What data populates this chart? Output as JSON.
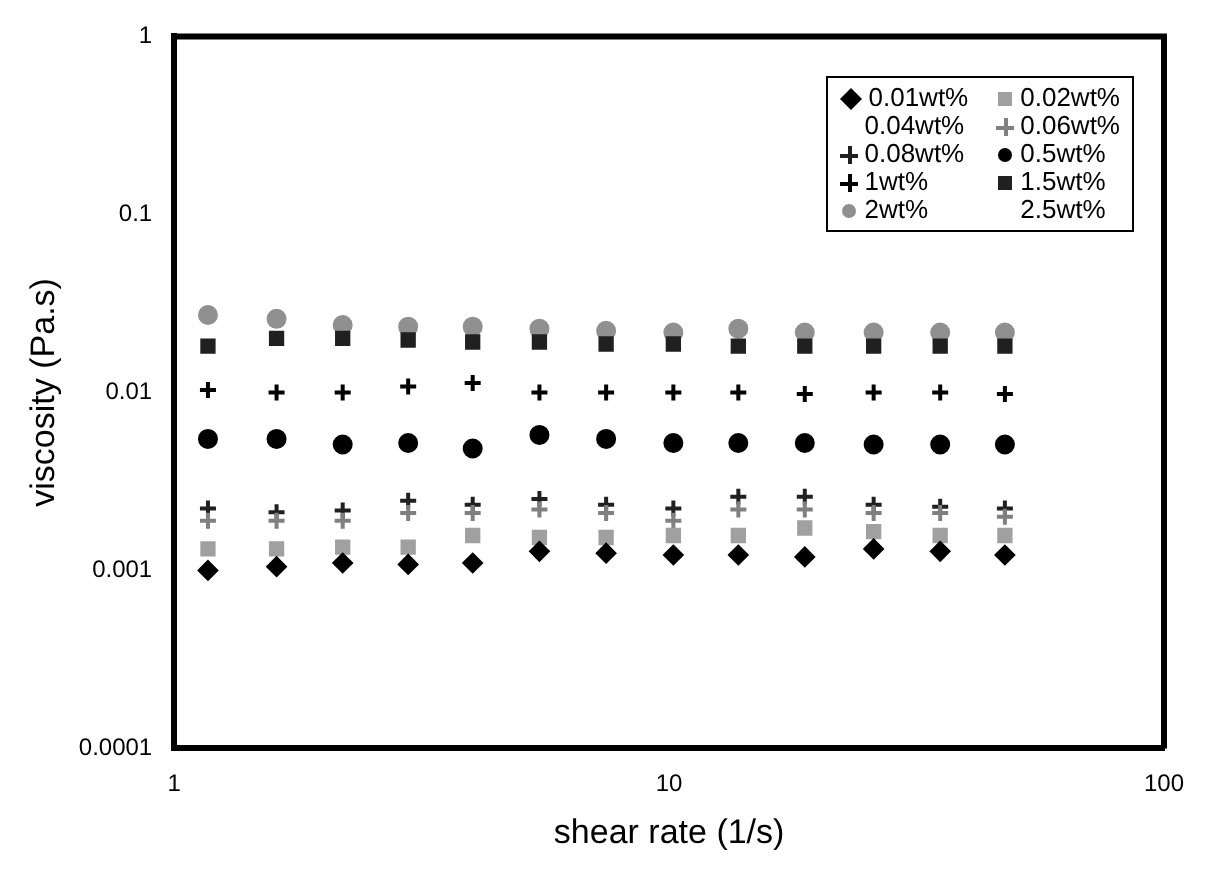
{
  "chart_data": {
    "type": "scatter",
    "xlabel": "shear rate (1/s)",
    "ylabel": "viscosity (Pa.s)",
    "log": "xy",
    "xlim": [
      1,
      100
    ],
    "ylim": [
      0.0001,
      1
    ],
    "xticks": [
      1,
      10,
      100
    ],
    "yticks": [
      0.0001,
      0.001,
      0.01,
      0.1,
      1
    ],
    "grid": false,
    "legend": "top right",
    "x": [
      1.17,
      1.61,
      2.19,
      2.97,
      4.01,
      5.47,
      7.46,
      10.2,
      13.8,
      18.8,
      25.9,
      35.3,
      47.7
    ],
    "series": [
      {
        "name": "0.01wt%",
        "color": "#000000",
        "marker": "diamond",
        "values": [
          0.001,
          0.00105,
          0.0011,
          0.00108,
          0.0011,
          0.00128,
          0.00125,
          0.00122,
          0.00122,
          0.00119,
          0.00132,
          0.00128,
          0.00122
        ]
      },
      {
        "name": "0.02wt%",
        "color": "#a0a0a0",
        "marker": "square",
        "values": [
          0.00132,
          0.00132,
          0.00135,
          0.00135,
          0.00157,
          0.00153,
          0.00153,
          0.00157,
          0.00157,
          0.00173,
          0.00165,
          0.00157,
          0.00157
        ]
      },
      {
        "name": "0.04wt%",
        "marker": "none",
        "values": [
          null,
          null,
          null,
          null,
          null,
          null,
          null,
          null,
          null,
          null,
          null,
          null,
          null
        ]
      },
      {
        "name": "0.06wt%",
        "color": "#808080",
        "marker": "cross",
        "values": [
          0.0019,
          0.0019,
          0.0019,
          0.0021,
          0.0021,
          0.0022,
          0.0021,
          0.0019,
          0.0022,
          0.0022,
          0.0021,
          0.0021,
          0.002
        ]
      },
      {
        "name": "0.08wt%",
        "color": "#202020",
        "marker": "cross",
        "values": [
          0.00223,
          0.00212,
          0.00217,
          0.00246,
          0.00234,
          0.00252,
          0.00234,
          0.00223,
          0.00259,
          0.00259,
          0.00234,
          0.00228,
          0.00223
        ]
      },
      {
        "name": "0.5wt%",
        "color": "#000000",
        "marker": "circle",
        "values": [
          0.00548,
          0.00548,
          0.0051,
          0.0052,
          0.00484,
          0.00577,
          0.00548,
          0.0052,
          0.0052,
          0.0052,
          0.0051,
          0.0051,
          0.0051
        ]
      },
      {
        "name": "1wt%",
        "color": "#000000",
        "marker": "cross",
        "values": [
          0.0103,
          0.01,
          0.01,
          0.0108,
          0.0113,
          0.01,
          0.01,
          0.01,
          0.01,
          0.0098,
          0.01,
          0.01,
          0.0098
        ]
      },
      {
        "name": "1.5wt%",
        "color": "#202020",
        "marker": "square",
        "values": [
          0.0182,
          0.0201,
          0.0201,
          0.0197,
          0.0192,
          0.0192,
          0.0187,
          0.0187,
          0.0182,
          0.0182,
          0.0182,
          0.0182,
          0.0182
        ]
      },
      {
        "name": "2wt%",
        "color": "#909090",
        "marker": "circle",
        "values": [
          0.0272,
          0.0259,
          0.0239,
          0.0234,
          0.0234,
          0.0228,
          0.0222,
          0.0217,
          0.0228,
          0.0217,
          0.0217,
          0.0217,
          0.0217
        ]
      },
      {
        "name": "2.5wt%",
        "marker": "none",
        "values": [
          null,
          null,
          null,
          null,
          null,
          null,
          null,
          null,
          null,
          null,
          null,
          null,
          null
        ]
      }
    ]
  }
}
